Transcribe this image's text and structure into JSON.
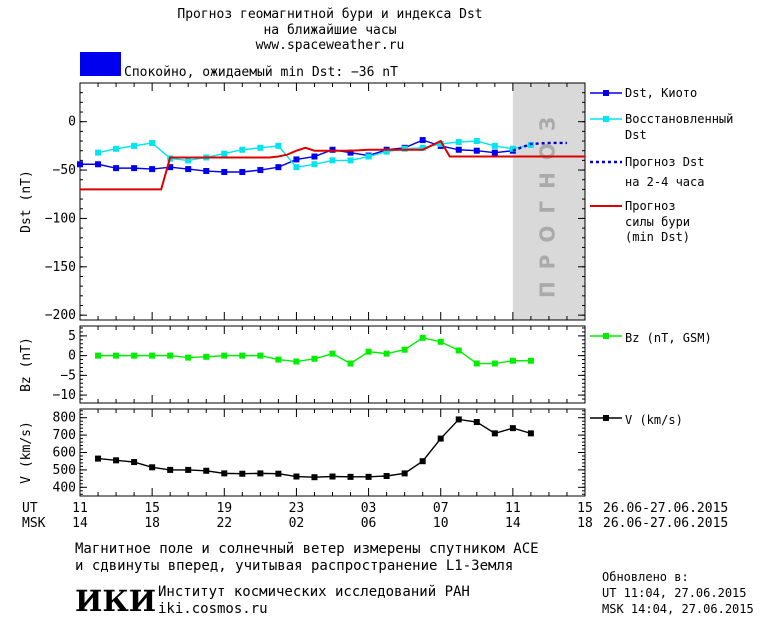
{
  "header": {
    "title_line1": "Прогноз геомагнитной бури и индекса Dst",
    "title_line2": "на ближайшие часы",
    "url": "www.spaceweather.ru",
    "status": "Спокойно, ожидаемый min Dst: −36 nT",
    "status_color": "#0000ee"
  },
  "colors": {
    "dst_kyoto": "#0000ee",
    "dst_restored": "#00e5ee",
    "dst_forecast": "#0000cc",
    "storm_forecast": "#dd0000",
    "bz": "#00ee00",
    "v": "#000000",
    "forecast_band": "#d9d9d9",
    "forecast_text": "#aaaaaa"
  },
  "forecast_band_label": "ПРОГНОЗ",
  "legend": {
    "dst_kyoto": "Dst, Киото",
    "dst_restored_1": "Восстановленный",
    "dst_restored_2": "Dst",
    "dst_forecast_1": "Прогноз Dst",
    "dst_forecast_2": "на 2-4 часа",
    "storm_1": "Прогноз",
    "storm_2": "силы бури",
    "storm_3": "(min Dst)",
    "bz": "Bz (nT, GSM)",
    "v": "V (km/s)"
  },
  "time_axis": {
    "ut_label": "UT",
    "msk_label": "MSK",
    "ut_ticks": [
      "11",
      "15",
      "19",
      "23",
      "03",
      "07",
      "11",
      "15"
    ],
    "msk_ticks": [
      "14",
      "18",
      "22",
      "02",
      "06",
      "10",
      "14",
      "18"
    ],
    "ut_range": "26.06-27.06.2015",
    "msk_range": "26.06-27.06.2015"
  },
  "footer": {
    "note_line1": "Магнитное поле и солнечный ветер измерены спутником ACE",
    "note_line2": "и сдвинуты вперед, учитывая распространение L1-Земля",
    "logo_text": "ИКИ",
    "institute": "Институт космических исследований РАН",
    "institute_url": "iki.cosmos.ru",
    "updated_label": "Обновлено в:",
    "updated_ut": "UT  11:04, 27.06.2015",
    "updated_msk": "MSK 14:04, 27.06.2015"
  },
  "chart_data": [
    {
      "type": "line",
      "panel": "dst",
      "ylabel": "Dst (nT)",
      "xlim": [
        0,
        28
      ],
      "ylim": [
        -205,
        40
      ],
      "yticks": [
        0,
        -50,
        -100,
        -150,
        -200
      ],
      "forecast_band_x": [
        24,
        28
      ],
      "series": [
        {
          "name": "Dst, Киото",
          "x": [
            0,
            1,
            2,
            3,
            4,
            5,
            6,
            7,
            8,
            9,
            10,
            11,
            12,
            13,
            14,
            15,
            16,
            17,
            18,
            19,
            20,
            21,
            22,
            23,
            24
          ],
          "y": [
            -44,
            -44,
            -48,
            -48,
            -49,
            -47,
            -49,
            -51,
            -52,
            -52,
            -50,
            -47,
            -39,
            -36,
            -29,
            -32,
            -35,
            -29,
            -27,
            -19,
            -25,
            -29,
            -30,
            -32,
            -30
          ]
        },
        {
          "name": "Восстановленный Dst",
          "x": [
            1,
            2,
            3,
            4,
            5,
            6,
            7,
            8,
            9,
            10,
            11,
            12,
            13,
            14,
            15,
            16,
            17,
            18,
            19,
            20,
            21,
            22,
            23,
            24,
            25
          ],
          "y": [
            -32,
            -28,
            -25,
            -22,
            -38,
            -40,
            -37,
            -33,
            -29,
            -27,
            -25,
            -47,
            -44,
            -40,
            -40,
            -36,
            -31,
            -28,
            -27,
            -23,
            -21,
            -20,
            -25,
            -28,
            -24
          ]
        },
        {
          "name": "Прогноз Dst на 2-4 часа",
          "x": [
            24,
            25,
            26,
            27
          ],
          "y": [
            -30,
            -23,
            -22,
            -22
          ]
        },
        {
          "name": "Прогноз силы бури (min Dst)",
          "x": [
            0,
            3.5,
            4.5,
            5,
            10,
            10.5,
            11,
            11.5,
            12,
            12.5,
            13,
            14,
            15,
            16,
            19,
            20,
            20.5,
            28
          ],
          "y": [
            -70,
            -70,
            -70,
            -37,
            -37,
            -37,
            -36,
            -34,
            -30,
            -27,
            -30,
            -30,
            -30,
            -29,
            -29,
            -20,
            -36,
            -36
          ]
        }
      ]
    },
    {
      "type": "line",
      "panel": "bz",
      "ylabel": "Bz (nT)",
      "xlim": [
        0,
        28
      ],
      "ylim": [
        -12,
        7.5
      ],
      "yticks": [
        5,
        0,
        -5,
        -10
      ],
      "series": [
        {
          "name": "Bz (nT, GSM)",
          "x": [
            1,
            2,
            3,
            4,
            5,
            6,
            7,
            8,
            9,
            10,
            11,
            12,
            13,
            14,
            15,
            16,
            17,
            18,
            19,
            20,
            21,
            22,
            23,
            24,
            25
          ],
          "y": [
            0,
            0,
            0,
            0,
            0,
            -0.5,
            -0.3,
            0,
            0,
            0,
            -1,
            -1.5,
            -0.8,
            0.5,
            -2,
            1,
            0.5,
            1.5,
            4.5,
            3.5,
            1.3,
            -2,
            -2,
            -1.3,
            -1.3
          ]
        }
      ]
    },
    {
      "type": "line",
      "panel": "v",
      "ylabel": "V (km/s)",
      "xlim": [
        0,
        28
      ],
      "ylim": [
        350,
        850
      ],
      "yticks": [
        800,
        700,
        600,
        500,
        400
      ],
      "series": [
        {
          "name": "V (km/s)",
          "x": [
            1,
            2,
            3,
            4,
            5,
            6,
            7,
            8,
            9,
            10,
            11,
            12,
            13,
            14,
            15,
            16,
            17,
            18,
            19,
            20,
            21,
            22,
            23,
            24,
            25
          ],
          "y": [
            565,
            555,
            545,
            515,
            500,
            500,
            495,
            480,
            478,
            480,
            478,
            462,
            458,
            462,
            460,
            460,
            465,
            480,
            550,
            680,
            790,
            775,
            710,
            740,
            710
          ]
        }
      ]
    }
  ]
}
